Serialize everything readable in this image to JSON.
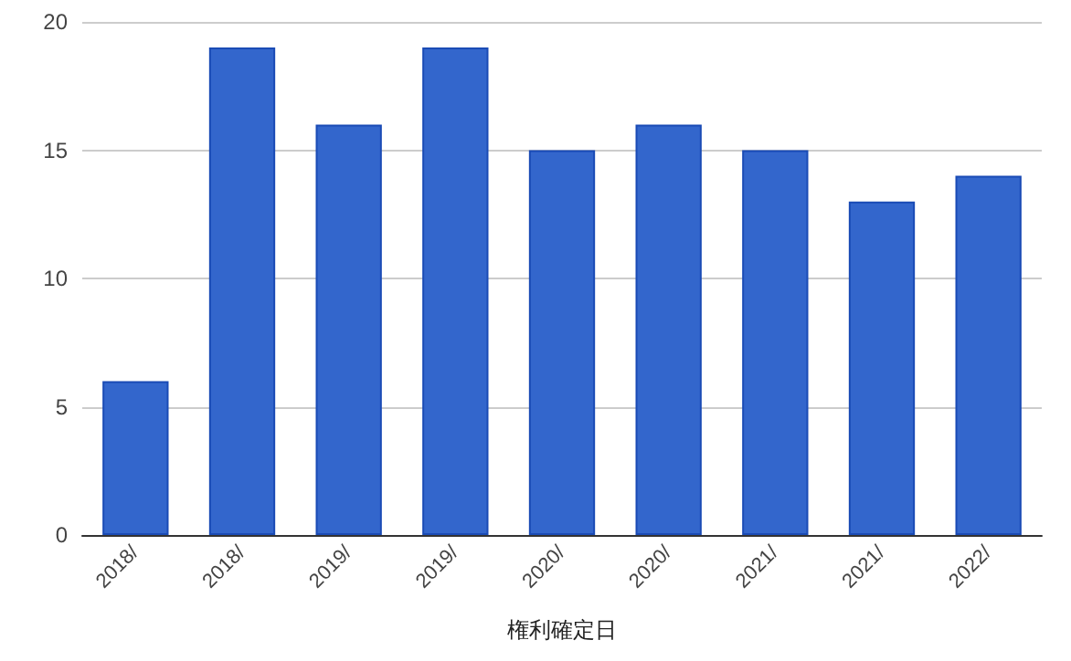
{
  "chart_data": {
    "type": "bar",
    "xlabel": "権利確定日",
    "categories": [
      "2018/",
      "2018/",
      "2019/",
      "2019/",
      "2020/",
      "2020/",
      "2021/",
      "2021/",
      "2022/"
    ],
    "values": [
      6,
      19,
      16,
      19,
      15,
      16,
      15,
      13,
      14
    ],
    "color": "#3366cc",
    "ylim": [
      0,
      20
    ],
    "yticks": [
      0,
      5,
      10,
      15,
      20
    ],
    "grid": "y"
  }
}
